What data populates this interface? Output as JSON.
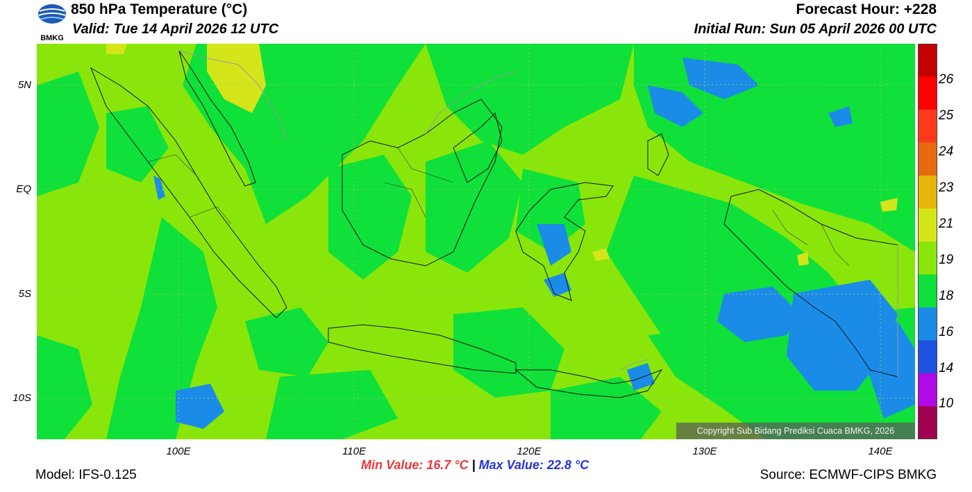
{
  "header": {
    "logo_text": "BMKG",
    "title": "850 hPa Temperature (°C)",
    "valid": "Valid: Tue 14 April 2026 12 UTC",
    "forecast_hour": "Forecast Hour: +228",
    "initial_run": "Initial Run: Sun 05 April 2026 00 UTC"
  },
  "map": {
    "lat_labels": [
      "5N",
      "EQ",
      "5S",
      "10S"
    ],
    "lon_labels": [
      "100E",
      "110E",
      "120E",
      "130E",
      "140E"
    ],
    "fill_colors": {
      "c19_21": "#8ae60a",
      "c18_19": "#0fe03a",
      "c16_18": "#1a8ce8",
      "c21_23": "#d4e61a",
      "coast": "#111111",
      "border_grey": "#9a9a9a"
    },
    "copyright": "Copyright Sub Bidang Prediksi Cuaca BMKG, 2026"
  },
  "colorbar": {
    "tick_labels": [
      "26",
      "25",
      "24",
      "23",
      "21",
      "19",
      "18",
      "16",
      "14",
      "10"
    ],
    "colors_top_to_bottom": [
      "#c40000",
      "#ff0000",
      "#ff3a1c",
      "#e86a10",
      "#e8b40a",
      "#d4e61a",
      "#8ae60a",
      "#0fe03a",
      "#1a8ce8",
      "#2052e0",
      "#b00ae6",
      "#a00050"
    ]
  },
  "footer": {
    "min_value": "Min Value: 16.7 °C",
    "separator": "|",
    "max_value": "Max Value: 22.8 °C",
    "model": "Model: IFS-0.125",
    "source": "Source: ECMWF-CIPS BMKG"
  }
}
